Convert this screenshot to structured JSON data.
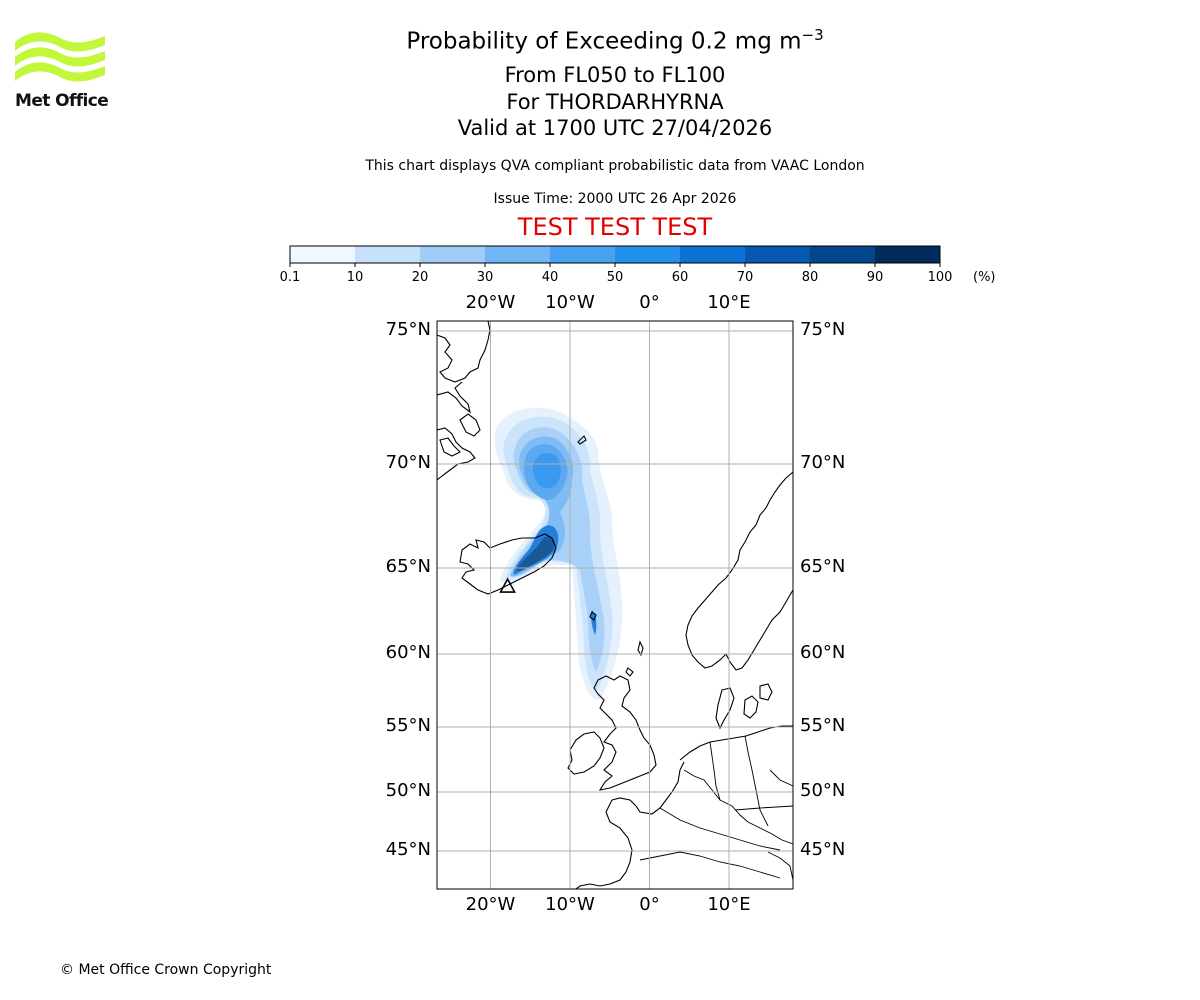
{
  "logo": {
    "text": "Met Office",
    "color": "#c3f73a"
  },
  "title": {
    "main": "Probability of Exceeding 0.2 mg m",
    "superscript": "−3",
    "line2": "From FL050 to FL100",
    "line3": "For THORDARHYRNA",
    "line4": "Valid at 1700 UTC 27/04/2026"
  },
  "subtitle": "This chart displays QVA compliant probabilistic data from VAAC London",
  "issue_time": "Issue Time: 2000 UTC 26 Apr 2026",
  "test_banner": {
    "text": "TEST TEST TEST",
    "color": "#e00000"
  },
  "colorbar": {
    "ticks": [
      "0.1",
      "10",
      "20",
      "30",
      "40",
      "50",
      "60",
      "70",
      "80",
      "90",
      "100"
    ],
    "colors": [
      "#f0f7ff",
      "#c6e2fb",
      "#a0cdf8",
      "#72b5f4",
      "#4aa0f0",
      "#2490ee",
      "#0b72d6",
      "#0558b0",
      "#03468c",
      "#012c5c"
    ],
    "units": "(%)"
  },
  "map": {
    "lon_labels": [
      "20°W",
      "10°W",
      "0°",
      "10°E"
    ],
    "lat_labels": [
      "75°N",
      "70°N",
      "65°N",
      "60°N",
      "55°N",
      "50°N",
      "45°N"
    ],
    "volcano_symbol": "Δ",
    "volcano_name": "THORDARHYRNA",
    "volcano_position": {
      "lon": -17.6,
      "lat": 64.3
    }
  },
  "copyright": "© Met Office Crown Copyright"
}
